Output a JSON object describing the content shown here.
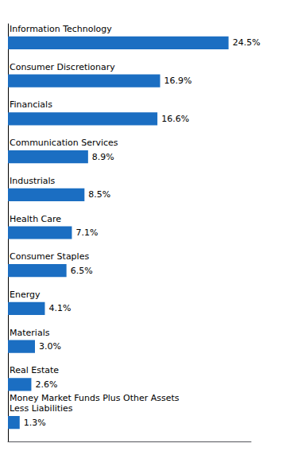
{
  "chart_data": {
    "type": "bar",
    "orientation": "horizontal",
    "categories": [
      "Information Technology",
      "Consumer Discretionary",
      "Financials",
      "Communication Services",
      "Industrials",
      "Health Care",
      "Consumer Staples",
      "Energy",
      "Materials",
      "Real Estate",
      "Money Market Funds Plus Other Assets\nLess Liabilities"
    ],
    "values": [
      24.5,
      16.9,
      16.6,
      8.9,
      8.5,
      7.1,
      6.5,
      4.1,
      3.0,
      2.6,
      1.3
    ],
    "value_labels": [
      "24.5%",
      "16.9%",
      "16.6%",
      "8.9%",
      "8.5%",
      "7.1%",
      "6.5%",
      "4.1%",
      "3.0%",
      "2.6%",
      "1.3%"
    ],
    "data_labels": true,
    "color": "#1B6EC2",
    "xlim": [
      0,
      27
    ],
    "tick_labels": false,
    "grid": false
  }
}
